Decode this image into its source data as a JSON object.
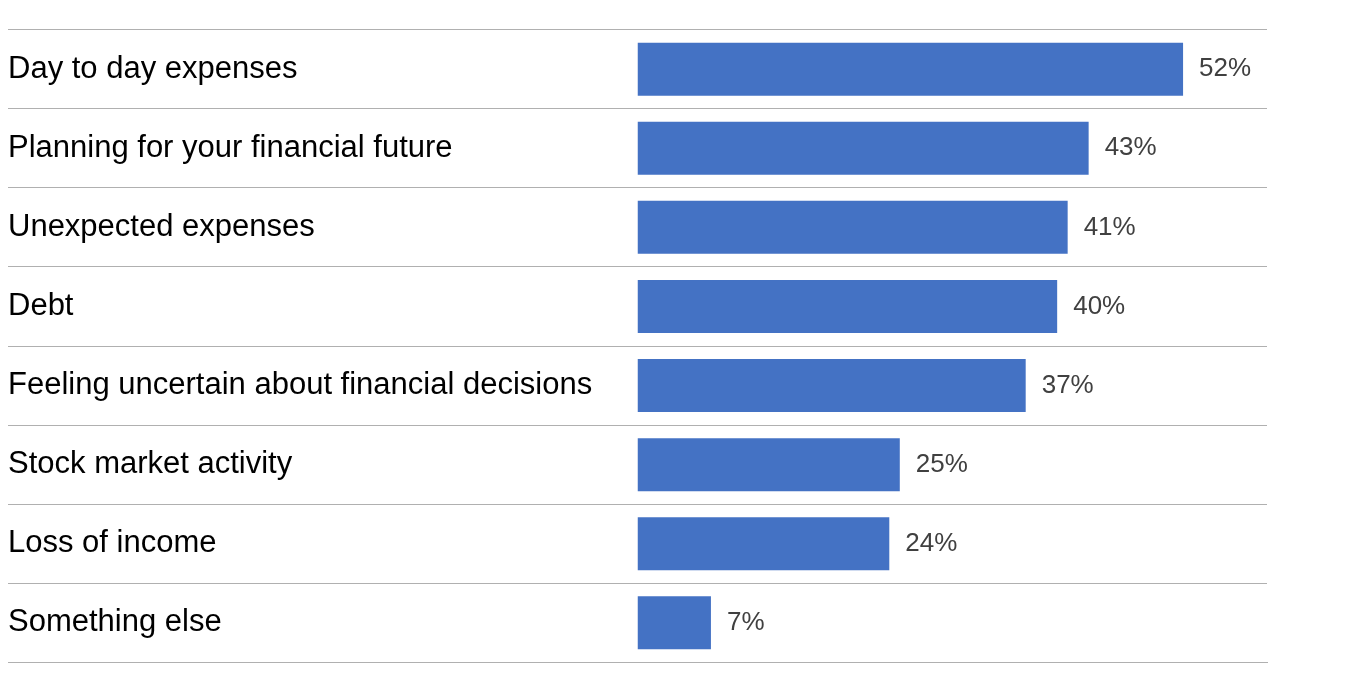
{
  "chart_data": {
    "type": "bar",
    "orientation": "horizontal",
    "categories": [
      "Day to day expenses",
      "Planning for your financial future",
      "Unexpected expenses",
      "Debt",
      "Feeling uncertain about financial decisions",
      "Stock market activity",
      "Loss of income",
      "Something else"
    ],
    "values": [
      52,
      43,
      41,
      40,
      37,
      25,
      24,
      7
    ],
    "value_labels": [
      "52%",
      "43%",
      "41%",
      "40%",
      "37%",
      "25%",
      "24%",
      "7%"
    ],
    "color": "#4472c4",
    "grid": "y",
    "legend": false,
    "tick_labels": "y"
  }
}
